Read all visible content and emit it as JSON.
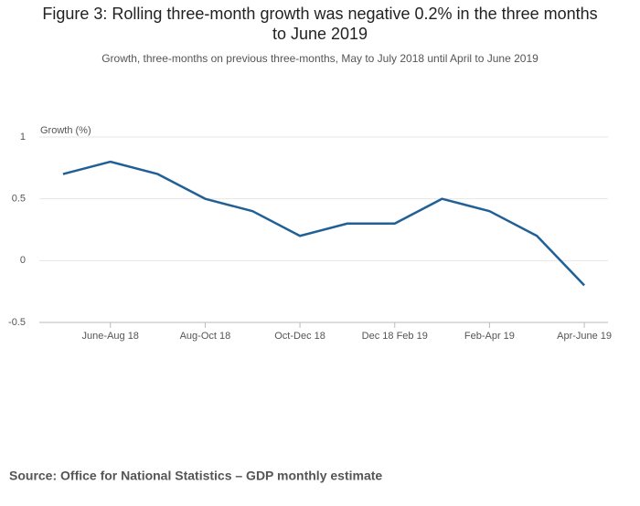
{
  "chart_data": {
    "type": "line",
    "title": "Figure 3: Rolling three-month growth was negative 0.2% in the three months to June 2019",
    "subtitle": "Growth, three-months on previous three-months, May to July 2018 until April to June 2019",
    "y_label": "Growth (%)",
    "categories": [
      null,
      "June-Aug 18",
      null,
      "Aug-Oct 18",
      null,
      "Oct-Dec 18",
      null,
      "Dec 18 Feb 19",
      null,
      "Feb-Apr 19",
      null,
      "Apr-June 19"
    ],
    "series": [
      {
        "name": "Growth",
        "color": "#206095",
        "values": [
          0.7,
          0.8,
          0.7,
          0.5,
          0.4,
          0.2,
          0.3,
          0.3,
          0.5,
          0.4,
          0.2,
          -0.2
        ]
      }
    ],
    "ylim": [
      -0.5,
      1
    ],
    "yticks": [
      -0.5,
      0,
      0.5,
      1
    ],
    "grid": true
  },
  "source": "Source: Office for National Statistics – GDP monthly estimate"
}
